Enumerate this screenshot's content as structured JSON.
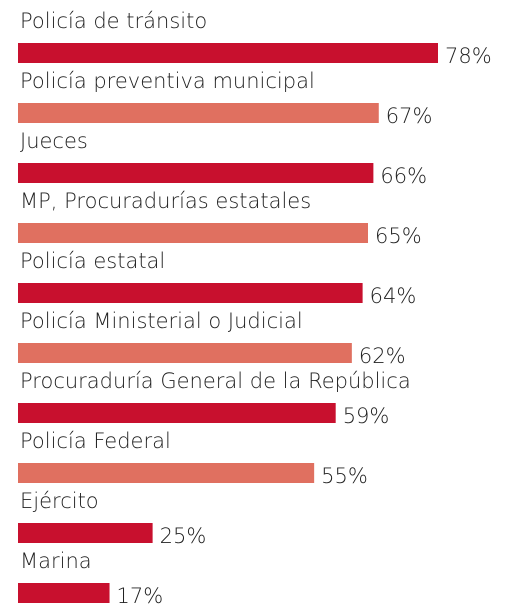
{
  "chart_data": {
    "type": "bar",
    "orientation": "horizontal",
    "categories": [
      "Policía de tránsito",
      "Policía preventiva municipal",
      "Jueces",
      "MP, Procuradurías estatales",
      "Policía estatal",
      "Policía Ministerial o Judicial",
      "Procuraduría General de la República",
      "Policía Federal",
      "Ejército",
      "Marina"
    ],
    "values": [
      78,
      67,
      66,
      65,
      64,
      62,
      59,
      55,
      25,
      17
    ],
    "value_labels": [
      "78%",
      "67%",
      "66%",
      "65%",
      "64%",
      "62%",
      "59%",
      "55%",
      "25%",
      "17%"
    ],
    "colors": [
      "#c8102e",
      "#e07060",
      "#c8102e",
      "#e07060",
      "#c8102e",
      "#e07060",
      "#c8102e",
      "#e07060",
      "#c8102e",
      "#c8102e"
    ]
  }
}
